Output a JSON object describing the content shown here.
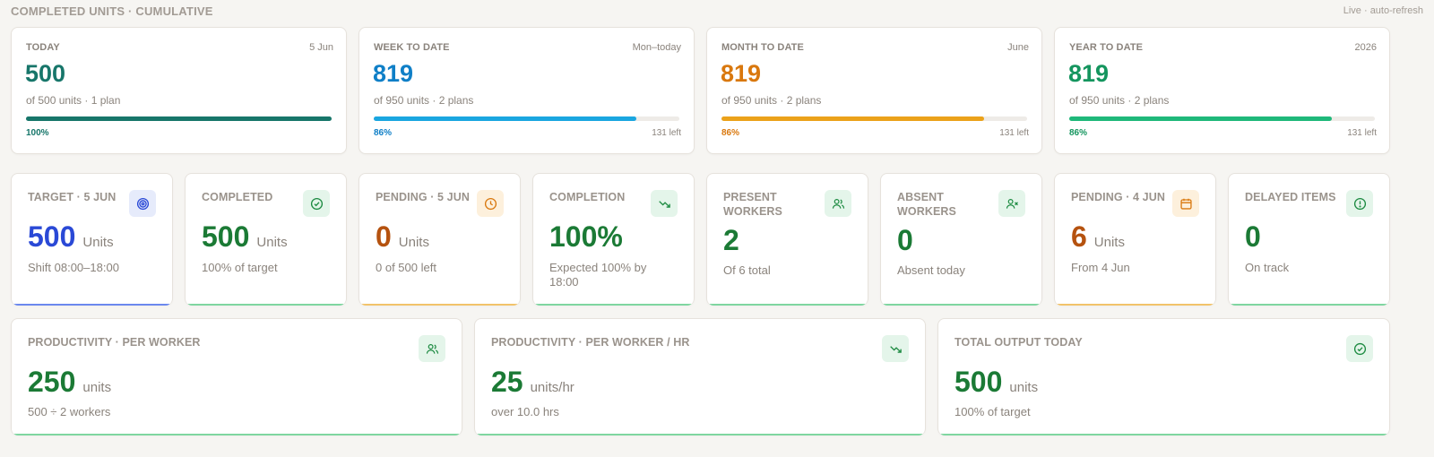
{
  "header": {
    "title": "COMPLETED UNITS · CUMULATIVE",
    "live": "Live · auto-refresh"
  },
  "colors": {
    "teal": "#17766a",
    "blue": "#0f7fc7",
    "orange": "#d9780e",
    "green": "#14955e",
    "darkgreen": "#1b7a35",
    "royal": "#2a49d6",
    "brown": "#b5520f"
  },
  "cumulative": [
    {
      "label": "TODAY",
      "period": "5 Jun",
      "value": "500",
      "sub": "of 500 units · 1 plan",
      "progress": 1.0,
      "pct": "100%",
      "left": ""
    },
    {
      "label": "WEEK TO DATE",
      "period": "Mon–today",
      "value": "819",
      "sub": "of 950 units · 2 plans",
      "progress": 0.86,
      "pct": "86%",
      "left": "131 left"
    },
    {
      "label": "MONTH TO DATE",
      "period": "June",
      "value": "819",
      "sub": "of 950 units · 2 plans",
      "progress": 0.86,
      "pct": "86%",
      "left": "131 left"
    },
    {
      "label": "YEAR TO DATE",
      "period": "2026",
      "value": "819",
      "sub": "of 950 units · 2 plans",
      "progress": 0.86,
      "pct": "86%",
      "left": "131 left"
    }
  ],
  "metrics": [
    {
      "label": "TARGET · 5 JUN",
      "icon": "target-icon",
      "value": "500",
      "unit": "Units",
      "sub": "Shift 08:00–18:00"
    },
    {
      "label": "COMPLETED",
      "icon": "check-circle-icon",
      "value": "500",
      "unit": "Units",
      "sub": "100% of target"
    },
    {
      "label": "PENDING · 5 JUN",
      "icon": "clock-icon",
      "value": "0",
      "unit": "Units",
      "sub": "0 of 500 left"
    },
    {
      "label": "COMPLETION",
      "icon": "trend-down-icon",
      "value": "100%",
      "unit": "",
      "sub": "Expected 100% by 18:00"
    },
    {
      "label": "PRESENT WORKERS",
      "icon": "users-icon",
      "value": "2",
      "unit": "",
      "sub": "Of 6 total"
    },
    {
      "label": "ABSENT WORKERS",
      "icon": "user-x-icon",
      "value": "0",
      "unit": "",
      "sub": "Absent today"
    },
    {
      "label": "PENDING · 4 JUN",
      "icon": "calendar-icon",
      "value": "6",
      "unit": "Units",
      "sub": "From 4 Jun"
    },
    {
      "label": "DELAYED ITEMS",
      "icon": "alert-circle-icon",
      "value": "0",
      "unit": "",
      "sub": "On track"
    }
  ],
  "productivity": [
    {
      "label": "PRODUCTIVITY · PER WORKER",
      "icon": "users-icon",
      "value": "250",
      "unit": "units",
      "sub": "500 ÷ 2 workers"
    },
    {
      "label": "PRODUCTIVITY · PER WORKER / HR",
      "icon": "trend-down-icon",
      "value": "25",
      "unit": "units/hr",
      "sub": "over 10.0 hrs"
    },
    {
      "label": "TOTAL OUTPUT TODAY",
      "icon": "check-circle-icon",
      "value": "500",
      "unit": "units",
      "sub": "100% of target"
    }
  ]
}
